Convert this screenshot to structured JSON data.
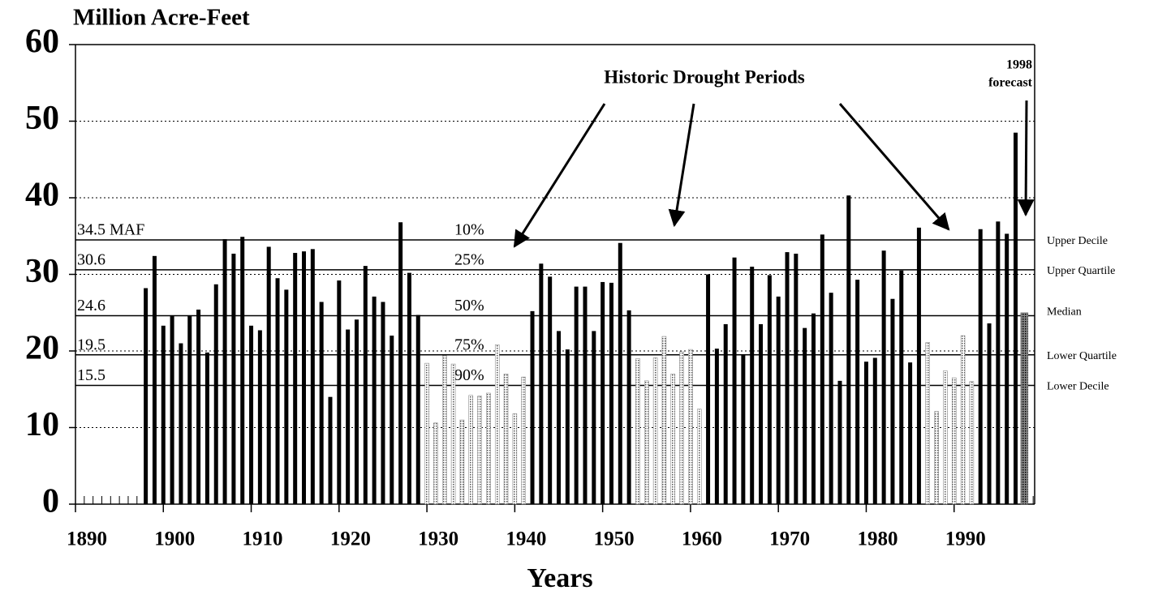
{
  "chart_data": {
    "type": "bar",
    "y_axis_title": "Million Acre-Feet",
    "x_axis_title": "Years",
    "annotation": "Historic Drought Periods",
    "forecast_labels": [
      "1998",
      "forecast"
    ],
    "x": [
      1898,
      1899,
      1900,
      1901,
      1902,
      1903,
      1904,
      1905,
      1906,
      1907,
      1908,
      1909,
      1910,
      1911,
      1912,
      1913,
      1914,
      1915,
      1916,
      1917,
      1918,
      1919,
      1920,
      1921,
      1922,
      1923,
      1924,
      1925,
      1926,
      1927,
      1928,
      1929,
      1930,
      1931,
      1932,
      1933,
      1934,
      1935,
      1936,
      1937,
      1938,
      1939,
      1940,
      1941,
      1942,
      1943,
      1944,
      1945,
      1946,
      1947,
      1948,
      1949,
      1950,
      1951,
      1952,
      1953,
      1954,
      1955,
      1956,
      1957,
      1958,
      1959,
      1960,
      1961,
      1962,
      1963,
      1964,
      1965,
      1966,
      1967,
      1968,
      1969,
      1970,
      1971,
      1972,
      1973,
      1974,
      1975,
      1976,
      1977,
      1978,
      1979,
      1980,
      1981,
      1982,
      1983,
      1984,
      1985,
      1986,
      1987,
      1988,
      1989,
      1990,
      1991,
      1992,
      1993,
      1994,
      1995,
      1996,
      1997,
      1998
    ],
    "values": [
      28.2,
      32.4,
      23.3,
      24.6,
      21.0,
      24.6,
      25.4,
      19.8,
      28.7,
      34.6,
      32.7,
      34.9,
      23.3,
      22.7,
      33.6,
      29.5,
      28.0,
      32.8,
      33.0,
      33.3,
      26.4,
      14.0,
      29.2,
      22.8,
      24.1,
      31.1,
      27.1,
      26.4,
      22.0,
      36.8,
      30.2,
      24.7,
      18.4,
      10.6,
      19.4,
      18.3,
      11.0,
      14.2,
      14.1,
      14.5,
      20.8,
      17.0,
      11.8,
      16.6,
      25.2,
      31.4,
      29.7,
      22.6,
      20.2,
      28.4,
      28.4,
      22.6,
      29.0,
      28.9,
      34.1,
      25.3,
      19.0,
      16.1,
      19.1,
      21.9,
      17.0,
      19.9,
      20.2,
      12.4,
      30.0,
      20.3,
      23.5,
      32.2,
      19.5,
      31.0,
      23.5,
      29.9,
      27.1,
      32.9,
      32.7,
      23.0,
      24.9,
      35.2,
      27.6,
      16.1,
      40.3,
      29.3,
      18.6,
      19.1,
      33.1,
      26.8,
      30.5,
      18.5,
      36.1,
      21.1,
      12.1,
      17.4,
      16.5,
      22.0,
      16.0,
      35.9,
      23.6,
      36.9,
      35.3,
      48.5,
      25.0
    ],
    "bar_styles": [
      "normal",
      "normal",
      "normal",
      "normal",
      "normal",
      "normal",
      "normal",
      "normal",
      "normal",
      "normal",
      "normal",
      "normal",
      "normal",
      "normal",
      "normal",
      "normal",
      "normal",
      "normal",
      "normal",
      "normal",
      "normal",
      "normal",
      "normal",
      "normal",
      "normal",
      "normal",
      "normal",
      "normal",
      "normal",
      "normal",
      "normal",
      "normal",
      "drought",
      "drought",
      "drought",
      "drought",
      "drought",
      "drought",
      "drought",
      "drought",
      "drought",
      "drought",
      "drought",
      "drought",
      "normal",
      "normal",
      "normal",
      "normal",
      "normal",
      "normal",
      "normal",
      "normal",
      "normal",
      "normal",
      "normal",
      "normal",
      "drought",
      "drought",
      "drought",
      "drought",
      "drought",
      "drought",
      "drought",
      "drought",
      "normal",
      "normal",
      "normal",
      "normal",
      "normal",
      "normal",
      "normal",
      "normal",
      "normal",
      "normal",
      "normal",
      "normal",
      "normal",
      "normal",
      "normal",
      "normal",
      "normal",
      "normal",
      "normal",
      "normal",
      "normal",
      "normal",
      "normal",
      "normal",
      "normal",
      "drought",
      "drought",
      "drought",
      "drought",
      "drought",
      "drought",
      "normal",
      "normal",
      "normal",
      "normal",
      "normal",
      "forecast"
    ],
    "color": "#000000",
    "xlim": [
      1890,
      2000
    ],
    "xticks": [
      1890,
      1900,
      1910,
      1920,
      1930,
      1940,
      1950,
      1960,
      1970,
      1980,
      1990
    ],
    "ylim": [
      0,
      60
    ],
    "yticks": [
      0,
      10,
      20,
      30,
      40,
      50,
      60
    ],
    "grid": true,
    "reference_lines": [
      {
        "value": 34.5,
        "label": "34.5 MAF",
        "percent": "10%",
        "name": "Upper Decile"
      },
      {
        "value": 30.6,
        "label": "30.6",
        "percent": "25%",
        "name": "Upper Quartile"
      },
      {
        "value": 24.6,
        "label": "24.6",
        "percent": "50%",
        "name": "Median"
      },
      {
        "value": 19.5,
        "label": "19.5",
        "percent": "75%",
        "name": "Lower Quartile"
      },
      {
        "value": 15.5,
        "label": "15.5",
        "percent": "90%",
        "name": "Lower Decile"
      }
    ]
  }
}
